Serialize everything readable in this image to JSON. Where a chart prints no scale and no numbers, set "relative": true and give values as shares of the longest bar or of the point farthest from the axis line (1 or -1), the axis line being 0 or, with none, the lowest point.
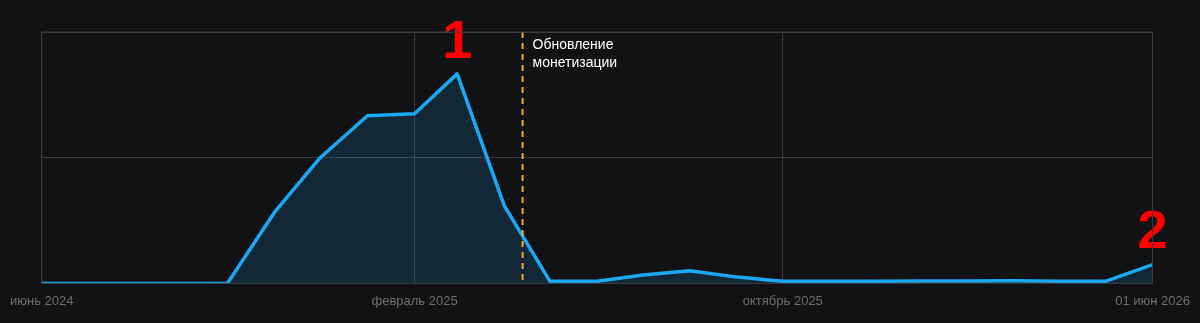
{
  "chart_data": {
    "type": "area",
    "relative": true,
    "color": "#1ba8f5",
    "x": [
      "2024-06",
      "2024-07",
      "2024-08",
      "2024-09",
      "2024-10",
      "2024-11",
      "2024-12",
      "2025-01",
      "2025-02",
      "2025-03",
      "2025-04",
      "2025-05",
      "2025-06",
      "2025-07",
      "2025-08",
      "2025-09",
      "2025-10",
      "2025-11",
      "2025-12",
      "2026-01",
      "2026-02",
      "2026-03",
      "2026-04",
      "2026-05",
      "2026-06"
    ],
    "values": [
      0,
      0,
      0,
      0,
      0,
      0.34,
      0.6,
      0.8,
      0.81,
      1,
      0.37,
      0.01,
      0.01,
      0.04,
      0.06,
      0.03,
      0.01,
      0.01,
      0.01,
      0.012,
      0.012,
      0.013,
      0.01,
      0.01,
      0.09
    ],
    "xlim": [
      "2024-06",
      "2026-06"
    ],
    "xticks": [
      {
        "value": "2024-06",
        "label": "июнь 2024"
      },
      {
        "value": "2025-02",
        "label": "февраль 2025"
      },
      {
        "value": "2025-10",
        "label": "октябрь 2025"
      },
      {
        "value": "2026-06-01",
        "label": "01 июн 2026"
      }
    ],
    "ref_lines": [
      {
        "axis": "x",
        "value": "2025-04-13",
        "label": "Обновление монетизации",
        "color": "#f5a623",
        "line_style": "dashed"
      }
    ],
    "annotations": [
      {
        "text": "1",
        "x": "2025-03",
        "y": 1
      },
      {
        "text": "2",
        "x": "2026-06",
        "y": 0.09
      }
    ],
    "grid": true,
    "legend": false,
    "marker": "none",
    "line_style": "solid"
  }
}
